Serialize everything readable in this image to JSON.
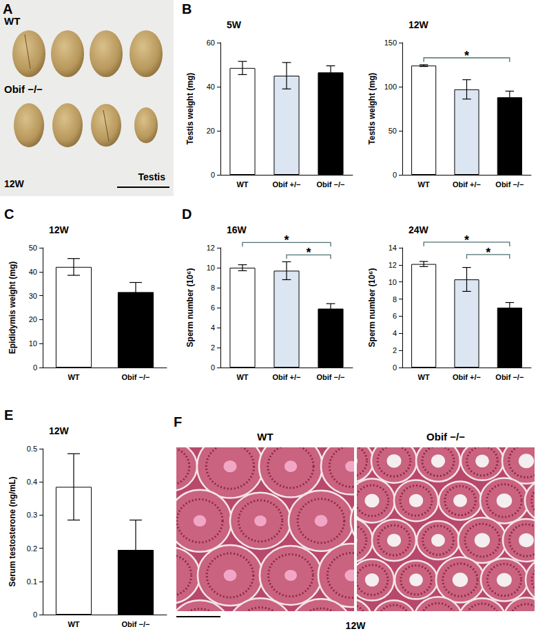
{
  "figure": {
    "panel_a": {
      "panel": "A",
      "top_label": "WT",
      "bottom_label": "Obif −/−",
      "age": "12W",
      "organ": "Testis"
    },
    "panel_f": {
      "panel": "F",
      "left_label": "WT",
      "right_label": "Obif −/−",
      "age": "12W"
    }
  },
  "chart_data": [
    {
      "panel": "B",
      "type": "bar",
      "title": "5W",
      "ylabel": "Testis weight (mg)",
      "categories": [
        "WT",
        "Obif +/−",
        "Obif −/−"
      ],
      "values": [
        48.5,
        45,
        46.5
      ],
      "errors": [
        3,
        6,
        3
      ],
      "colors": [
        "#ffffff",
        "#dce6f2",
        "#000000"
      ],
      "ylim": [
        0,
        60
      ],
      "yticks": [
        0,
        20,
        40,
        60
      ],
      "grid": false,
      "annotations": []
    },
    {
      "type": "bar",
      "title": "12W",
      "ylabel": "Testis weight (mg)",
      "categories": [
        "WT",
        "Obif +/−",
        "Obif −/−"
      ],
      "values": [
        124,
        97,
        88
      ],
      "errors": [
        1,
        11,
        7
      ],
      "colors": [
        "#ffffff",
        "#dce6f2",
        "#000000"
      ],
      "ylim": [
        0,
        150
      ],
      "yticks": [
        0,
        50,
        100,
        150
      ],
      "grid": false,
      "annotations": [
        {
          "from": "WT",
          "to": "Obif −/−",
          "text": "*"
        }
      ]
    },
    {
      "panel": "C",
      "type": "bar",
      "title": "12W",
      "ylabel": "Epididymis weight (mg)",
      "categories": [
        "WT",
        "Obif −/−"
      ],
      "values": [
        42,
        31.5
      ],
      "errors": [
        3.5,
        4
      ],
      "colors": [
        "#ffffff",
        "#000000"
      ],
      "ylim": [
        0,
        50
      ],
      "yticks": [
        0,
        10,
        20,
        30,
        40,
        50
      ],
      "grid": false,
      "annotations": []
    },
    {
      "panel": "D",
      "type": "bar",
      "title": "16W",
      "ylabel": "Sperm number (10⁶)",
      "categories": [
        "WT",
        "Obif +/−",
        "Obif −/−"
      ],
      "values": [
        10,
        9.7,
        5.9
      ],
      "errors": [
        0.3,
        0.9,
        0.5
      ],
      "colors": [
        "#ffffff",
        "#dce6f2",
        "#000000"
      ],
      "ylim": [
        0,
        12
      ],
      "yticks": [
        0,
        2,
        4,
        6,
        8,
        10,
        12
      ],
      "grid": false,
      "annotations": [
        {
          "from": "WT",
          "to": "Obif −/−",
          "text": "*"
        },
        {
          "from": "Obif +/−",
          "to": "Obif −/−",
          "text": "*"
        }
      ]
    },
    {
      "type": "bar",
      "title": "24W",
      "ylabel": "Sperm number (10⁶)",
      "categories": [
        "WT",
        "Obif +/−",
        "Obif −/−"
      ],
      "values": [
        12.1,
        10.3,
        7
      ],
      "errors": [
        0.3,
        1.4,
        0.6
      ],
      "colors": [
        "#ffffff",
        "#dce6f2",
        "#000000"
      ],
      "ylim": [
        0,
        14
      ],
      "yticks": [
        0,
        2,
        4,
        6,
        8,
        10,
        12,
        14
      ],
      "grid": false,
      "annotations": [
        {
          "from": "WT",
          "to": "Obif −/−",
          "text": "*"
        },
        {
          "from": "Obif +/−",
          "to": "Obif −/−",
          "text": "*"
        }
      ]
    },
    {
      "panel": "E",
      "type": "bar",
      "title": "12W",
      "ylabel": "Serum testosterone (ng/mL)",
      "categories": [
        "WT",
        "Obif −/−"
      ],
      "values": [
        0.385,
        0.195
      ],
      "errors": [
        0.1,
        0.09
      ],
      "colors": [
        "#ffffff",
        "#000000"
      ],
      "ylim": [
        0,
        0.5
      ],
      "yticks": [
        0,
        0.1,
        0.2,
        0.3,
        0.4,
        0.5
      ],
      "grid": false,
      "annotations": []
    }
  ]
}
